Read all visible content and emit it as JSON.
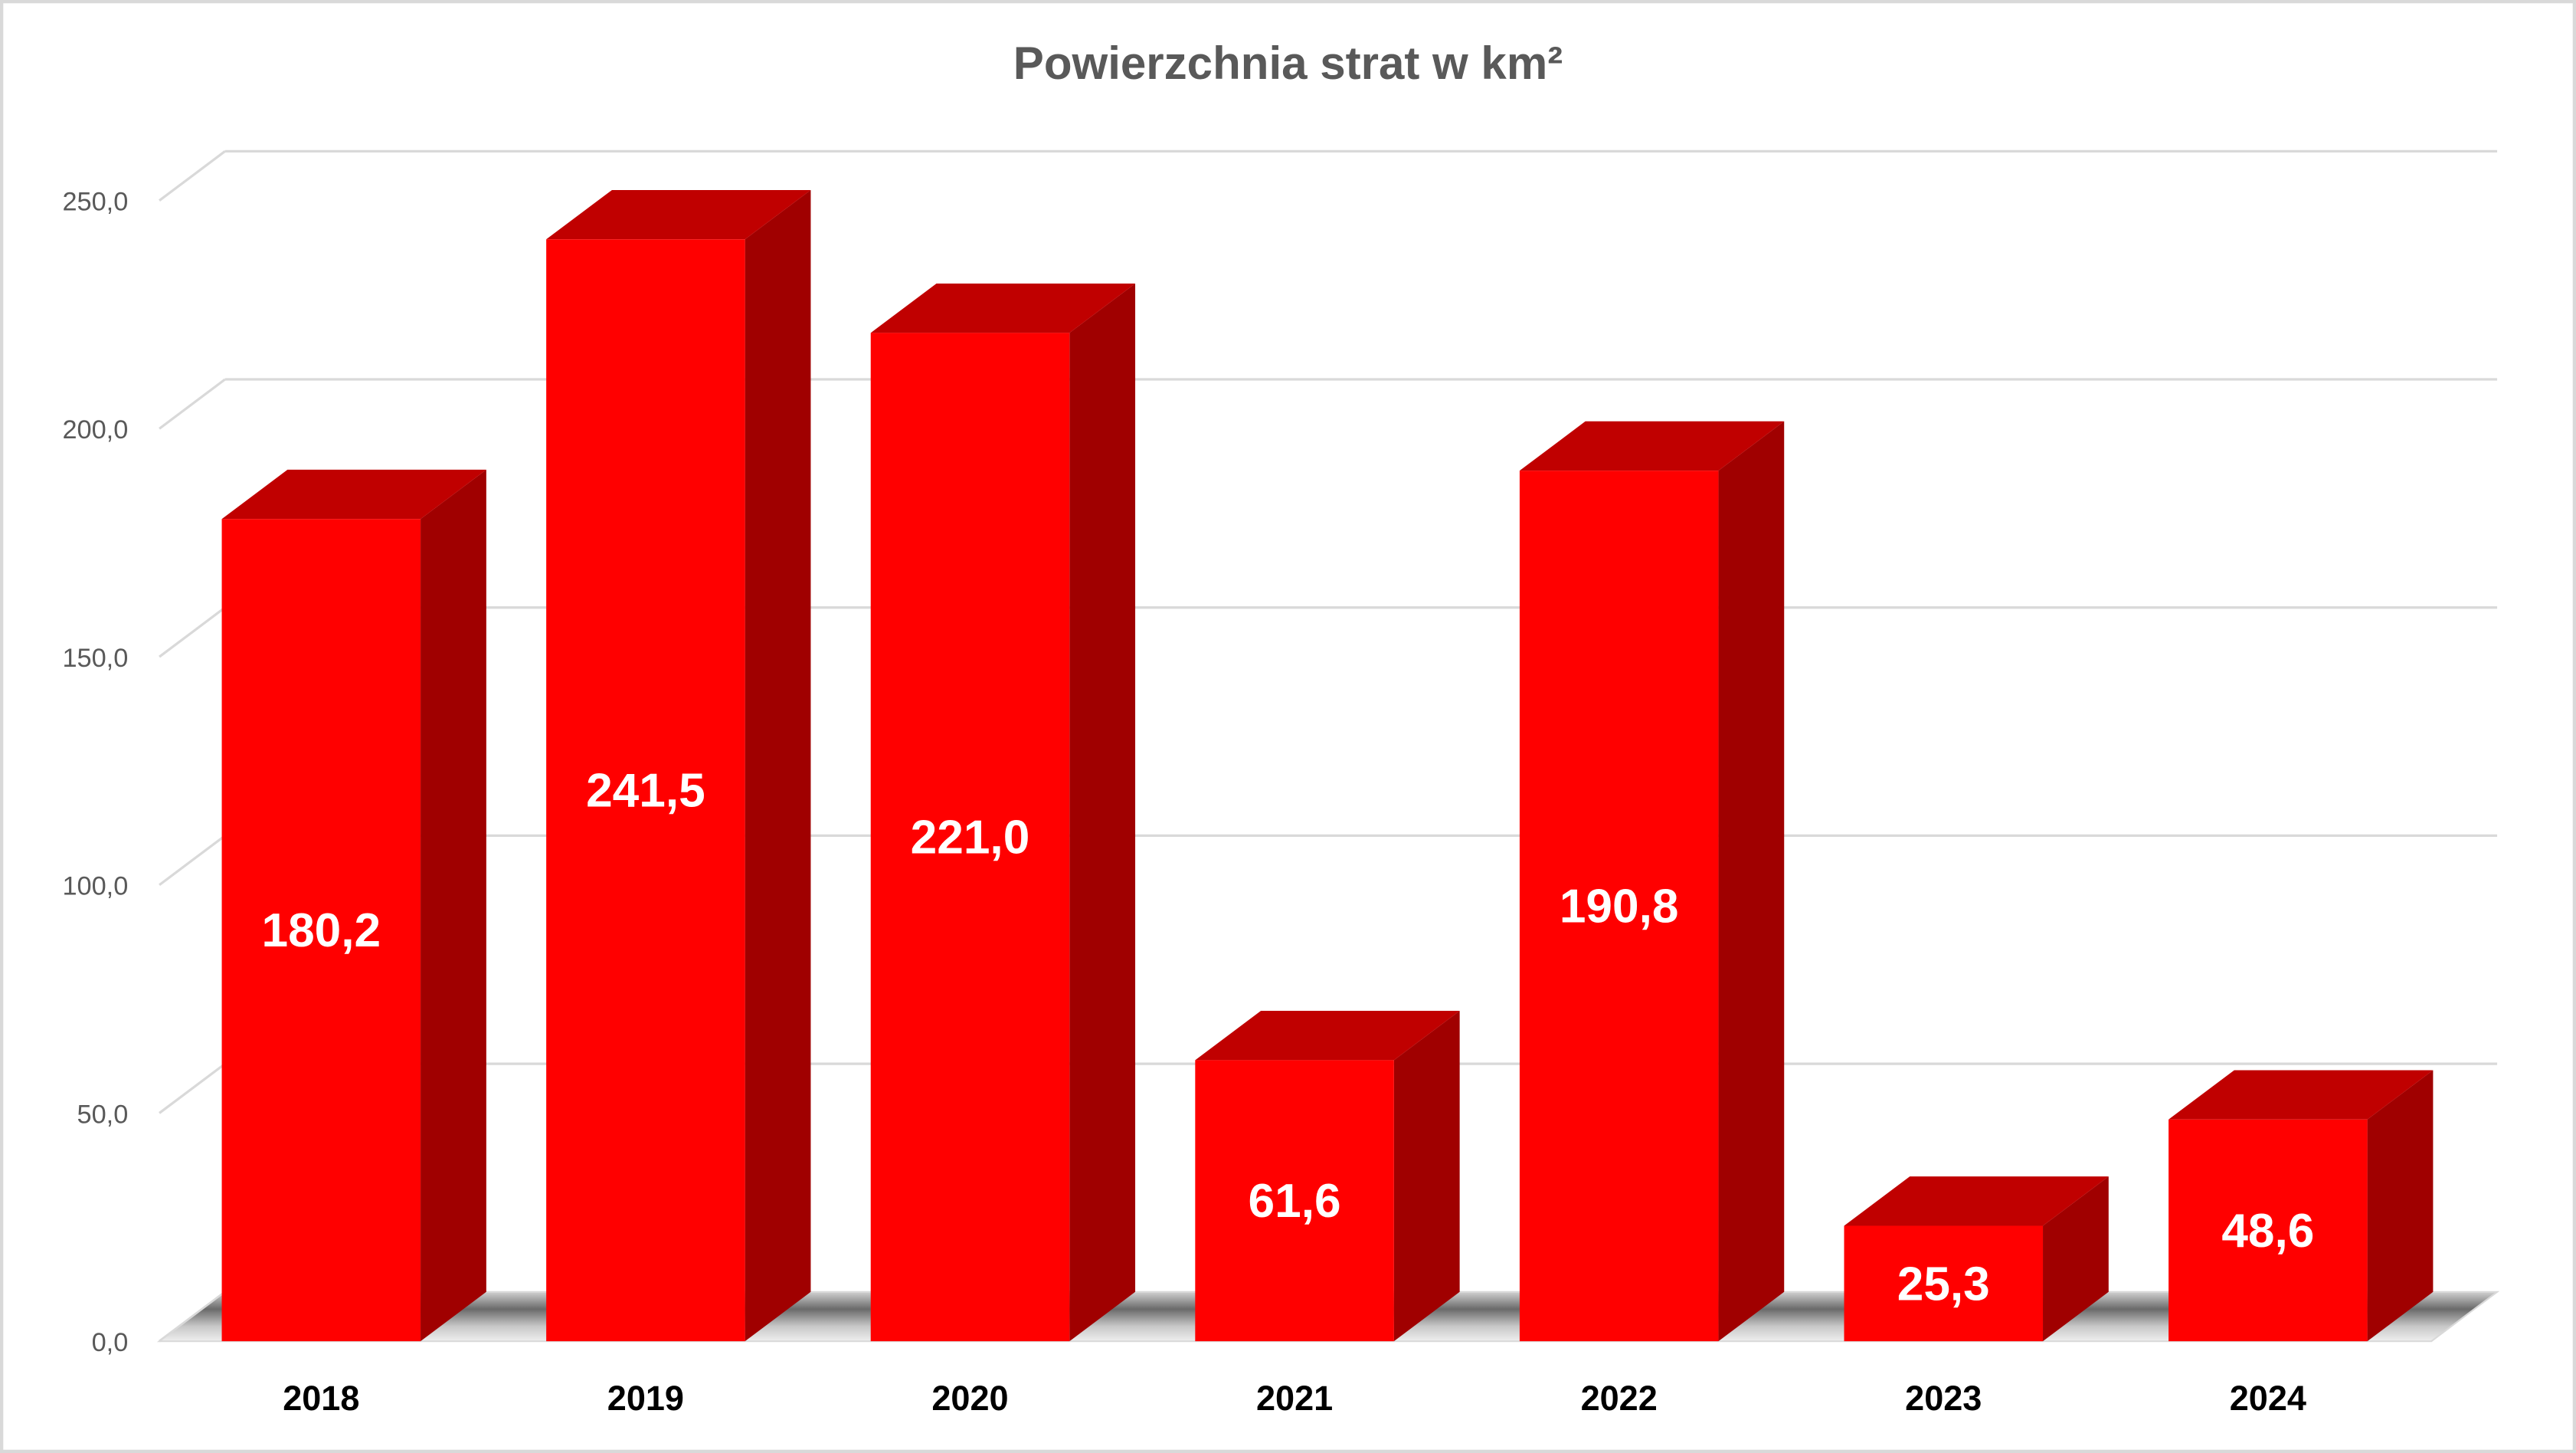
{
  "chart_data": {
    "type": "bar",
    "style": "3d-column",
    "title": "Powierzchnia strat w km²",
    "categories": [
      "2018",
      "2019",
      "2020",
      "2021",
      "2022",
      "2023",
      "2024"
    ],
    "values": [
      180.2,
      241.5,
      221.0,
      61.6,
      190.8,
      25.3,
      48.6
    ],
    "data_labels": [
      "180,2",
      "241,5",
      "221,0",
      "61,6",
      "190,8",
      "25,3",
      "48,6"
    ],
    "ylim": [
      0,
      250
    ],
    "yticks": [
      0,
      50,
      100,
      150,
      200,
      250
    ],
    "ytick_labels": [
      "0,0",
      "50,0",
      "100,0",
      "150,0",
      "200,0",
      "250,0"
    ],
    "xlabel": "",
    "ylabel": "",
    "grid": true,
    "legend": "none",
    "colors": {
      "front": "#FF0000",
      "top": "#C00000",
      "side": "#A00000",
      "grid": "#D9D9D9"
    }
  }
}
